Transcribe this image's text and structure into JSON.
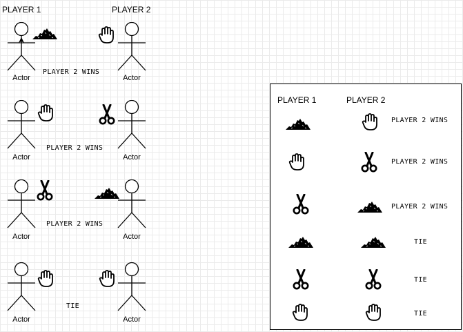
{
  "headers": {
    "player1": "PLAYER 1",
    "player2": "PLAYER 2"
  },
  "actor_label": "Actor",
  "rounds": [
    {
      "p1": "rock",
      "p2": "paper",
      "result": "PLAYER 2 WINS"
    },
    {
      "p1": "paper",
      "p2": "scissors",
      "result": "PLAYER 2 WINS"
    },
    {
      "p1": "scissors",
      "p2": "rock",
      "result": "PLAYER 2 WINS"
    },
    {
      "p1": "paper",
      "p2": "paper",
      "result": "TIE"
    }
  ],
  "table": {
    "header_p1": "PLAYER 1",
    "header_p2": "PLAYER 2",
    "rows": [
      {
        "p1": "rock",
        "p2": "paper",
        "result": "PLAYER 2 WINS"
      },
      {
        "p1": "paper",
        "p2": "scissors",
        "result": "PLAYER 2 WINS"
      },
      {
        "p1": "scissors",
        "p2": "rock",
        "result": "PLAYER 2 WINS"
      },
      {
        "p1": "rock",
        "p2": "rock",
        "result": "TIE"
      },
      {
        "p1": "scissors",
        "p2": "scissors",
        "result": "TIE"
      },
      {
        "p1": "paper",
        "p2": "paper",
        "result": "TIE"
      }
    ]
  },
  "icon_names": {
    "rock": "rock-icon",
    "paper": "paper-hand-icon",
    "scissors": "scissors-icon"
  },
  "colors": {
    "stroke": "#000000",
    "grid": "#ebebeb",
    "background": "#ffffff"
  }
}
